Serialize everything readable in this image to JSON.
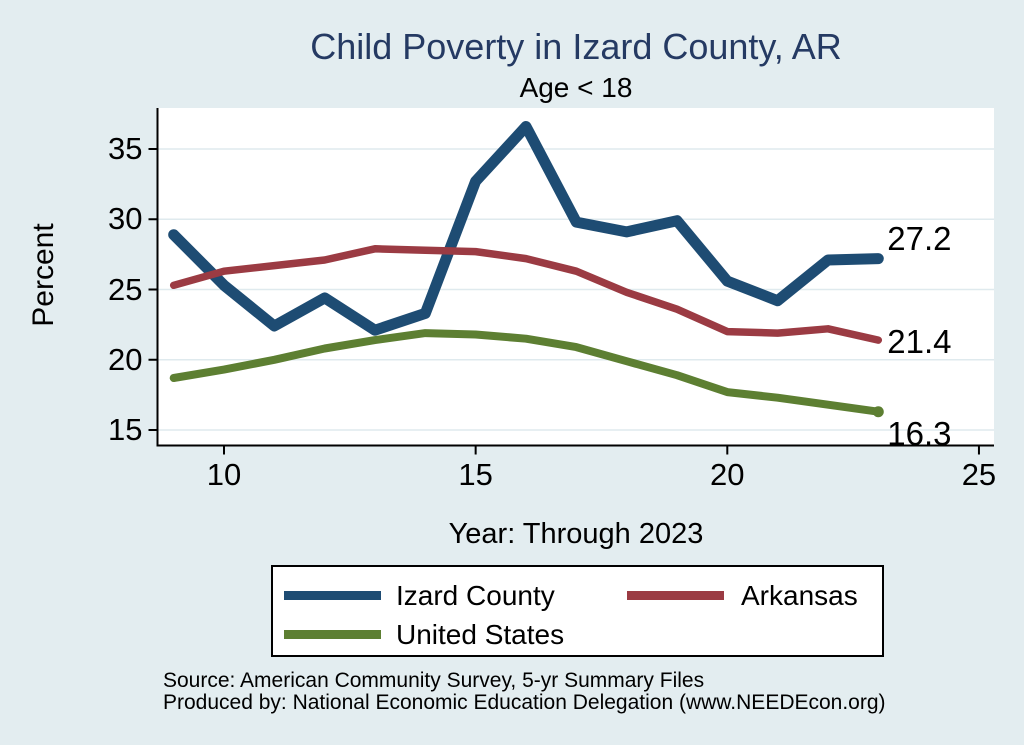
{
  "page": {
    "source_line1": "Source: American Community Survey, 5-yr Summary Files",
    "source_line2": "Produced by: National Economic Education Delegation (www.NEEDEcon.org)"
  },
  "chart_data": {
    "type": "line",
    "title": "Child Poverty in Izard County, AR",
    "subtitle": "Age < 18",
    "xlabel": "Year: Through 2023",
    "ylabel": "Percent",
    "x": [
      9,
      10,
      11,
      12,
      13,
      14,
      15,
      16,
      17,
      18,
      19,
      20,
      21,
      22,
      23
    ],
    "series": [
      {
        "name": "Izard County",
        "color": "#1e4c73",
        "line_width": 11,
        "values": [
          28.9,
          25.3,
          22.4,
          24.4,
          22.1,
          23.3,
          32.7,
          36.6,
          29.8,
          29.1,
          29.9,
          25.6,
          24.2,
          27.1,
          27.2
        ],
        "end_label": "27.2",
        "end_marker": false
      },
      {
        "name": "Arkansas",
        "color": "#9b3b43",
        "line_width": 7.5,
        "values": [
          25.3,
          26.3,
          26.7,
          27.1,
          27.9,
          27.8,
          27.7,
          27.2,
          26.3,
          24.8,
          23.6,
          22.0,
          21.9,
          22.2,
          21.4
        ],
        "end_label": "21.4",
        "end_marker": false
      },
      {
        "name": "United States",
        "color": "#5d7f32",
        "line_width": 8,
        "values": [
          18.7,
          19.3,
          20.0,
          20.8,
          21.4,
          21.9,
          21.8,
          21.5,
          20.9,
          19.9,
          18.9,
          17.7,
          17.3,
          16.8,
          16.3
        ],
        "end_label": "16.3",
        "end_marker": true
      }
    ],
    "x_ticks": [
      10,
      15,
      20,
      25
    ],
    "y_ticks": [
      35,
      30,
      25,
      20,
      15
    ],
    "xlim": [
      8.7,
      25.3
    ],
    "ylim": [
      13.9,
      37.9
    ],
    "grid": true,
    "grid_color": "#dfeaee",
    "plot_background": "#ffffff",
    "page_background": "#e3edf0",
    "title_color": "#253a63",
    "legend_position": "bottom"
  }
}
